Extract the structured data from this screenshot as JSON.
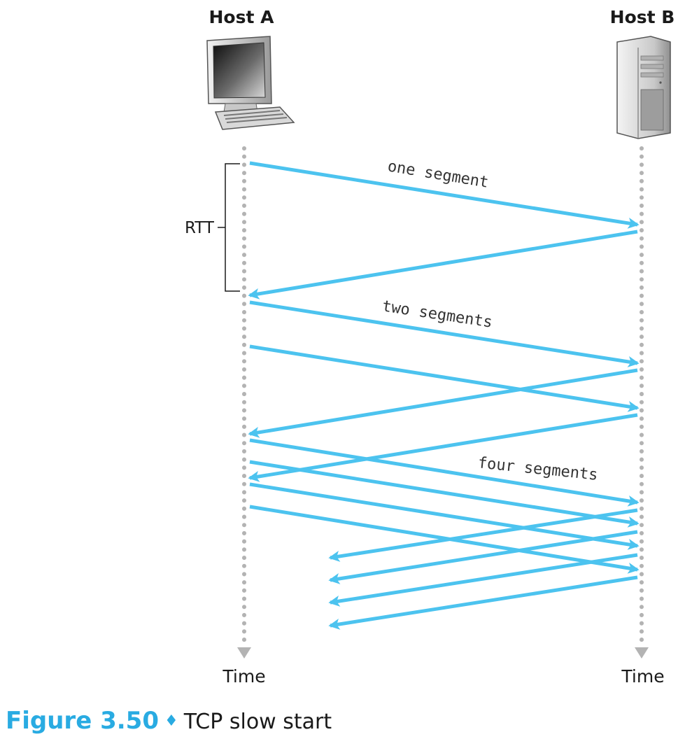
{
  "diagram": {
    "hosts": {
      "a": {
        "label": "Host A",
        "icon": "desktop-computer-icon"
      },
      "b": {
        "label": "Host B",
        "icon": "server-tower-icon"
      }
    },
    "time_label_a": "Time",
    "time_label_b": "Time",
    "rtt_label": "RTT",
    "segment_labels": {
      "one": "one segment",
      "two": "two segments",
      "four": "four segments"
    }
  },
  "caption": {
    "figure_number": "Figure 3.50",
    "separator": "♦",
    "text": "TCP slow start"
  },
  "colors": {
    "arrow": "#4cc3ef",
    "timeline": "#b3b3b3",
    "caption_accent": "#29abe2",
    "text": "#1a1a1a"
  }
}
